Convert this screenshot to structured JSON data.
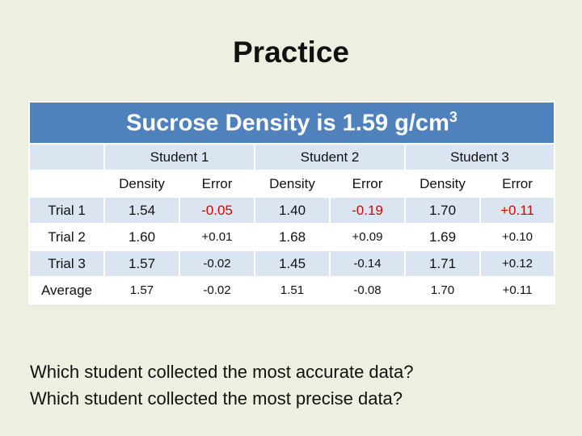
{
  "title": "Practice",
  "table": {
    "header": {
      "text": "Sucrose Density is 1.59 g/cm",
      "superscript": "3"
    },
    "students": [
      "Student 1",
      "Student 2",
      "Student 3"
    ],
    "sub_headers": [
      "Density",
      "Error",
      "Density",
      "Error",
      "Density",
      "Error"
    ],
    "rows": [
      {
        "label": "Trial 1",
        "cells": [
          "1.54",
          "-0.05",
          "1.40",
          "-0.19",
          "1.70",
          "+0.11"
        ]
      },
      {
        "label": "Trial 2",
        "cells": [
          "1.60",
          "+0.01",
          "1.68",
          "+0.09",
          "1.69",
          "+0.10"
        ]
      },
      {
        "label": "Trial 3",
        "cells": [
          "1.57",
          "-0.02",
          "1.45",
          "-0.14",
          "1.71",
          "+0.12"
        ]
      },
      {
        "label": "Average",
        "cells": [
          "1.57",
          "-0.02",
          "1.51",
          "-0.08",
          "1.70",
          "+0.11"
        ]
      }
    ],
    "highlight_color": "#e00000"
  },
  "questions": [
    "Which student collected the most accurate data?",
    "Which student collected the most precise data?"
  ]
}
